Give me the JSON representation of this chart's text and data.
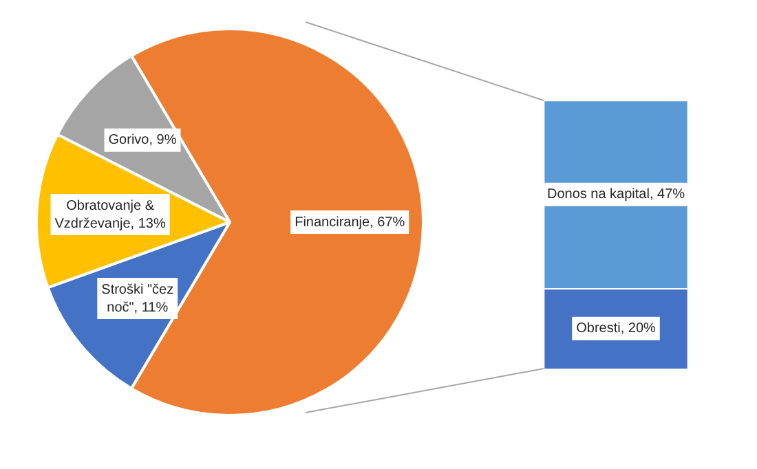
{
  "chart_data": [
    {
      "type": "pie",
      "categories": [
        "Financiranje",
        "Stroški \"čez noč\"",
        "Obratovanje & Vzdrževanje",
        "Gorivo"
      ],
      "values": [
        67,
        11,
        13,
        9
      ],
      "colors": [
        "#ed7d31",
        "#4472c4",
        "#ffc000",
        "#a5a5a5"
      ],
      "value_labels": [
        ", 67%",
        ", 11%",
        ", 13%",
        ", 9%"
      ],
      "legend": false
    },
    {
      "type": "bar",
      "stacked": true,
      "categories": [
        null
      ],
      "tick_labels": false,
      "legend": false,
      "series": [
        {
          "name": "Obresti",
          "color": "#4472c4",
          "values": [
            20
          ],
          "value_labels": [
            ", 20%"
          ]
        },
        {
          "name": "Donos na kapital",
          "color": "#5b9bd5",
          "values": [
            47
          ],
          "value_labels": [
            ", 47%"
          ]
        }
      ]
    }
  ]
}
